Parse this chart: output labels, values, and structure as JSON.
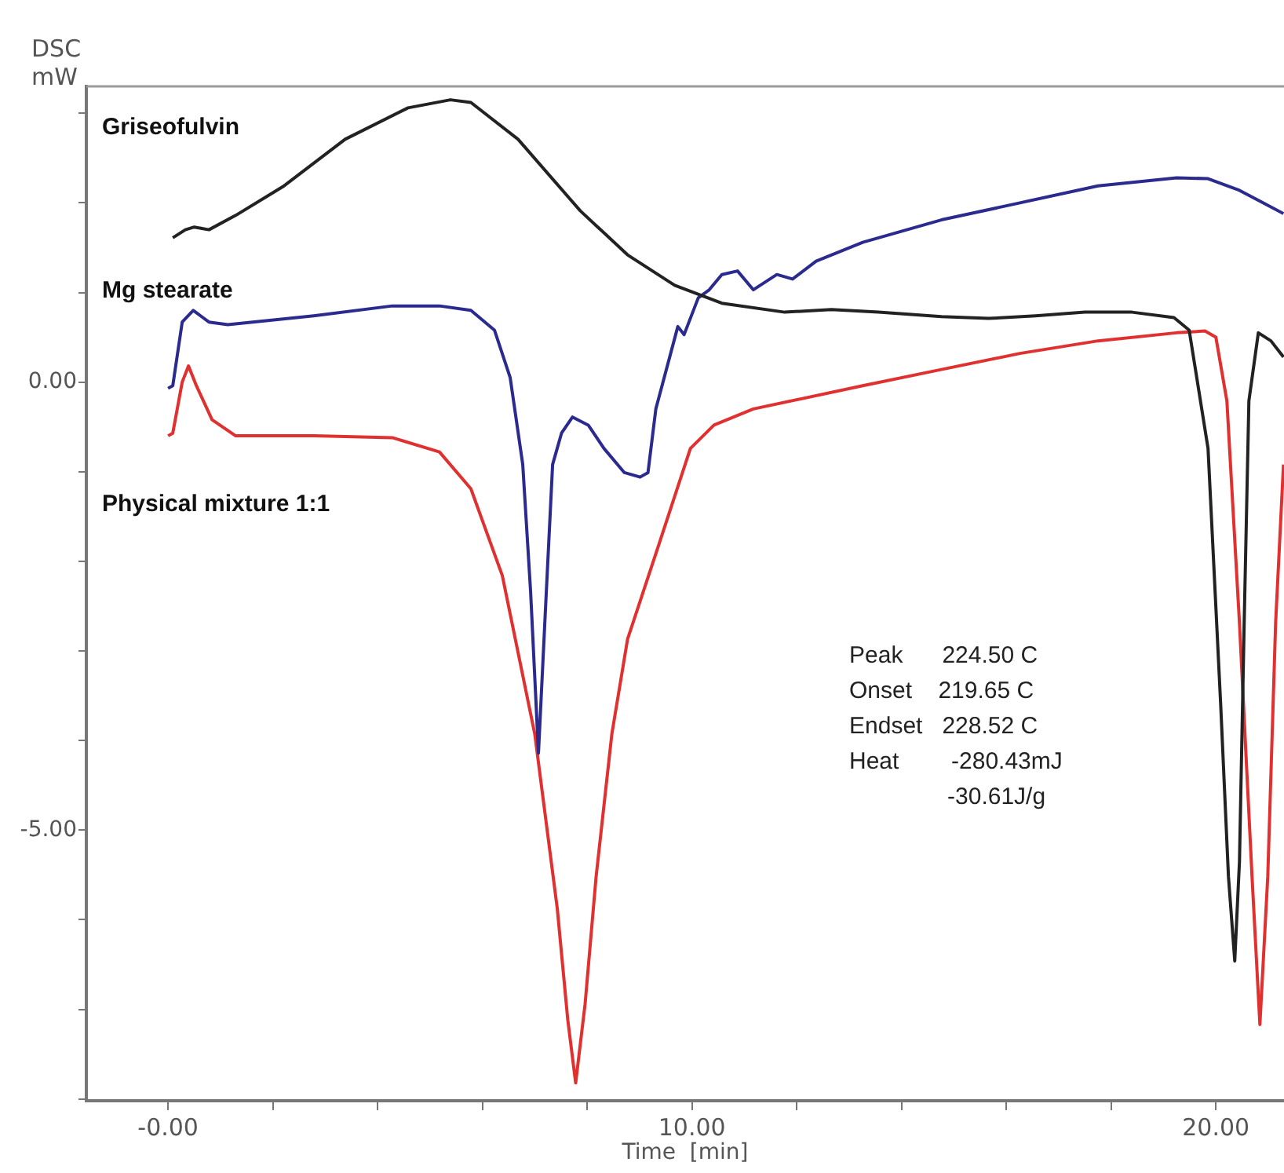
{
  "chart_data": {
    "type": "line",
    "xlabel": "Time  [min]",
    "ylabel": "DSC mW",
    "xlim": [
      -1.56,
      21.3
    ],
    "ylim": [
      -8.02,
      3.3
    ],
    "xticks": [
      {
        "value": 0,
        "label": "-0.00"
      },
      {
        "value": 2,
        "label": null
      },
      {
        "value": 4,
        "label": null
      },
      {
        "value": 6,
        "label": null
      },
      {
        "value": 8,
        "label": null
      },
      {
        "value": 10,
        "label": "10.00"
      },
      {
        "value": 12,
        "label": null
      },
      {
        "value": 14,
        "label": null
      },
      {
        "value": 16,
        "label": null
      },
      {
        "value": 18,
        "label": null
      },
      {
        "value": 20,
        "label": "20.00"
      }
    ],
    "yticks": [
      {
        "value": -8,
        "label": null
      },
      {
        "value": -7,
        "label": null
      },
      {
        "value": -6,
        "label": null
      },
      {
        "value": -5,
        "label": "-5.00"
      },
      {
        "value": -4,
        "label": null
      },
      {
        "value": -3,
        "label": null
      },
      {
        "value": -2,
        "label": null
      },
      {
        "value": -1,
        "label": null
      },
      {
        "value": 0,
        "label": "0.00"
      },
      {
        "value": 1,
        "label": null
      },
      {
        "value": 2,
        "label": null
      },
      {
        "value": 3,
        "label": null
      }
    ],
    "grid": false,
    "legend": false,
    "marker": "none",
    "line_style": "solid",
    "annotations": [
      "Peak      224.50 C",
      "Onset    219.65 C",
      "Endset   228.52 C",
      "Heat        -280.43mJ",
      "               -30.61J/g"
    ],
    "series": [
      {
        "name": "Griseofulvin",
        "color": "#222222",
        "x": [
          0.09,
          0.33,
          0.5,
          0.78,
          1.29,
          2.19,
          3.38,
          4.58,
          5.39,
          5.78,
          6.68,
          7.87,
          8.77,
          9.67,
          10.57,
          11.77,
          12.66,
          13.56,
          14.76,
          15.66,
          16.56,
          17.5,
          18.4,
          19.2,
          19.49,
          19.85,
          20.09,
          20.24,
          20.36,
          20.45,
          20.54,
          20.63,
          20.81,
          21.05,
          21.29
        ],
        "values": [
          1.61,
          1.7,
          1.73,
          1.7,
          1.86,
          2.18,
          2.71,
          3.06,
          3.15,
          3.12,
          2.71,
          1.91,
          1.42,
          1.08,
          0.88,
          0.78,
          0.81,
          0.78,
          0.73,
          0.71,
          0.74,
          0.78,
          0.78,
          0.72,
          0.58,
          -0.74,
          -3.58,
          -5.52,
          -6.46,
          -5.35,
          -2.69,
          -0.21,
          0.55,
          0.46,
          0.28
        ]
      },
      {
        "name": "Mg stearate",
        "color": "#2b2b8f",
        "x": [
          0,
          0.09,
          0.27,
          0.48,
          0.78,
          1.14,
          2.78,
          4.28,
          5.18,
          5.78,
          6.23,
          6.53,
          6.77,
          6.92,
          7.07,
          7.22,
          7.34,
          7.51,
          7.72,
          8.02,
          8.32,
          8.71,
          9.01,
          9.16,
          9.31,
          9.73,
          9.85,
          10.12,
          10.33,
          10.57,
          10.87,
          11.17,
          11.62,
          11.92,
          12.37,
          13.26,
          14.76,
          16.26,
          17.75,
          19.25,
          19.85,
          20.45,
          21.29
        ],
        "values": [
          -0.07,
          -0.04,
          0.67,
          0.8,
          0.67,
          0.64,
          0.74,
          0.85,
          0.85,
          0.8,
          0.58,
          0.05,
          -0.92,
          -2.34,
          -4.14,
          -2.34,
          -0.92,
          -0.57,
          -0.39,
          -0.48,
          -0.74,
          -1.01,
          -1.06,
          -1.01,
          -0.3,
          0.62,
          0.53,
          0.94,
          1.03,
          1.2,
          1.24,
          1.03,
          1.2,
          1.15,
          1.35,
          1.56,
          1.81,
          2.0,
          2.19,
          2.28,
          2.27,
          2.14,
          1.88
        ]
      },
      {
        "name": "Physical mixture 1:1",
        "color": "#e03030",
        "x": [
          0,
          0.09,
          0.27,
          0.39,
          0.54,
          0.84,
          1.29,
          2.78,
          4.28,
          5.18,
          5.78,
          6.38,
          7.0,
          7.43,
          7.63,
          7.78,
          7.96,
          8.17,
          8.47,
          8.77,
          9.07,
          9.37,
          9.97,
          10.42,
          11.17,
          13.26,
          14.76,
          16.26,
          17.75,
          19.25,
          19.79,
          20.0,
          20.21,
          20.45,
          20.69,
          20.84,
          20.99,
          21.14,
          21.29
        ],
        "values": [
          -0.6,
          -0.57,
          0,
          0.18,
          -0.04,
          -0.42,
          -0.6,
          -0.6,
          -0.62,
          -0.78,
          -1.19,
          -2.16,
          -3.93,
          -5.88,
          -7.12,
          -7.82,
          -6.94,
          -5.52,
          -3.93,
          -2.87,
          -2.34,
          -1.81,
          -0.74,
          -0.48,
          -0.3,
          -0.04,
          0.14,
          0.32,
          0.46,
          0.55,
          0.57,
          0.5,
          -0.21,
          -2.69,
          -5.52,
          -7.17,
          -5.52,
          -2.69,
          -0.92
        ]
      }
    ]
  }
}
